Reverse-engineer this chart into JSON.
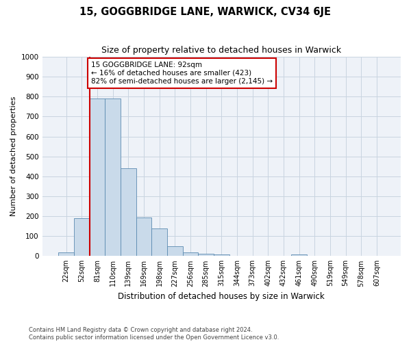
{
  "title": "15, GOGGBRIDGE LANE, WARWICK, CV34 6JE",
  "subtitle": "Size of property relative to detached houses in Warwick",
  "xlabel": "Distribution of detached houses by size in Warwick",
  "ylabel": "Number of detached properties",
  "categories": [
    "22sqm",
    "52sqm",
    "81sqm",
    "110sqm",
    "139sqm",
    "169sqm",
    "198sqm",
    "227sqm",
    "256sqm",
    "285sqm",
    "315sqm",
    "344sqm",
    "373sqm",
    "402sqm",
    "432sqm",
    "461sqm",
    "490sqm",
    "519sqm",
    "549sqm",
    "578sqm",
    "607sqm"
  ],
  "values": [
    18,
    190,
    790,
    790,
    440,
    195,
    140,
    48,
    18,
    12,
    8,
    0,
    0,
    0,
    0,
    8,
    0,
    0,
    0,
    0,
    0
  ],
  "bar_color": "#c9daea",
  "bar_edge_color": "#5a8ab0",
  "grid_color": "#c8d4e0",
  "background_color": "#eef2f8",
  "annotation_text": "15 GOGGBRIDGE LANE: 92sqm\n← 16% of detached houses are smaller (423)\n82% of semi-detached houses are larger (2,145) →",
  "annotation_box_color": "#ffffff",
  "annotation_box_edge": "#cc0000",
  "property_line_color": "#cc0000",
  "footer_line1": "Contains HM Land Registry data © Crown copyright and database right 2024.",
  "footer_line2": "Contains public sector information licensed under the Open Government Licence v3.0.",
  "ylim": [
    0,
    1000
  ],
  "yticks": [
    0,
    100,
    200,
    300,
    400,
    500,
    600,
    700,
    800,
    900,
    1000
  ],
  "line_x_index": 2.5
}
